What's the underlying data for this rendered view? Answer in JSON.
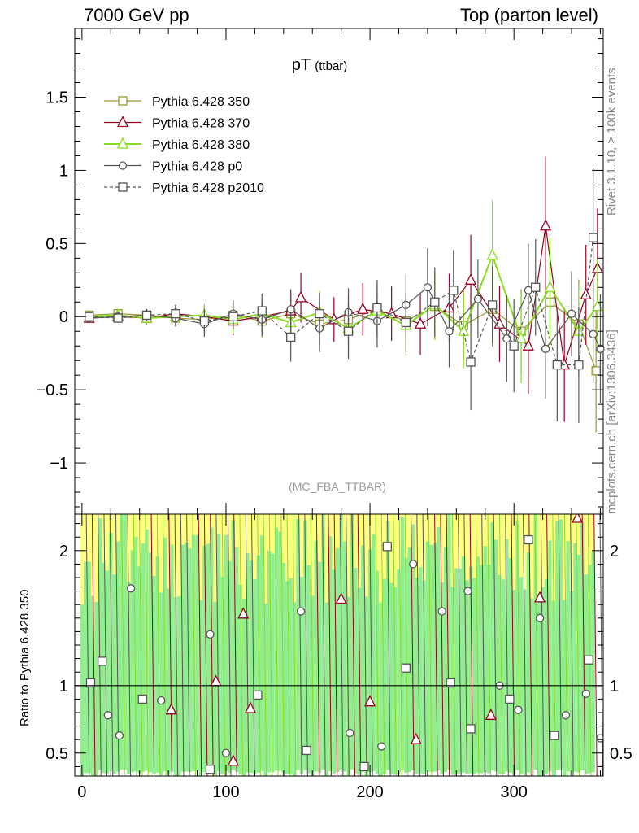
{
  "header": {
    "left": "7000 GeV pp",
    "right": "Top (parton level)"
  },
  "side_texts": {
    "rivet": "Rivet 3.1.10, ≥ 100k events",
    "mcplots": "mcplots.cern.ch [arXiv:1306.3436]"
  },
  "plot_title": {
    "main": "pT",
    "sub": "(ttbar)"
  },
  "analysis_id": "(MC_FBA_TTBAR)",
  "ratio_ylabel": "Ratio to Pythia 6.428 350",
  "colors": {
    "s350": "#999933",
    "s370": "#990022",
    "s380": "#88dd22",
    "p0": "#555555",
    "p2010": "#555555",
    "band_yellow": "#ffff80",
    "band_green": "#90ee90"
  },
  "chart_data": [
    {
      "type": "scatter",
      "panel": "main",
      "title": "pT (ttbar)",
      "xlim": [
        -5,
        362
      ],
      "ylim": [
        -1.35,
        1.97
      ],
      "yticks": [
        -1,
        -0.5,
        0,
        0.5,
        1,
        1.5
      ],
      "ytick_labels": [
        "−1",
        "−0.5",
        "0",
        "0.5",
        "1",
        "1.5"
      ],
      "legend_position": "top-left",
      "series": [
        {
          "name": "Pythia 6.428 350",
          "marker": "square-open",
          "line": "solid",
          "x": [
            5,
            25,
            45,
            65,
            85,
            105,
            125,
            145,
            165,
            185,
            205,
            225,
            245,
            265,
            285,
            305,
            325,
            345,
            357
          ],
          "y": [
            0.01,
            0.02,
            0.01,
            -0.01,
            -0.02,
            0.01,
            -0.03,
            0.02,
            -0.05,
            -0.02,
            0.05,
            -0.03,
            0.07,
            -0.06,
            0.05,
            -0.1,
            0.1,
            -0.05,
            -0.37
          ]
        },
        {
          "name": "Pythia 6.428 370",
          "marker": "triangle-open",
          "line": "solid",
          "x": [
            5,
            25,
            45,
            65,
            85,
            105,
            125,
            145,
            152,
            175,
            195,
            215,
            235,
            255,
            270,
            290,
            310,
            322,
            335,
            350,
            358
          ],
          "y": [
            -0.01,
            0.0,
            -0.01,
            0.02,
            0.0,
            -0.03,
            0.0,
            0.04,
            0.13,
            -0.02,
            0.05,
            0.02,
            -0.05,
            0.06,
            0.25,
            -0.05,
            -0.2,
            0.62,
            -0.33,
            0.15,
            0.33
          ]
        },
        {
          "name": "Pythia 6.428 380",
          "marker": "triangle-open",
          "line": "solid",
          "x": [
            5,
            25,
            45,
            65,
            85,
            105,
            125,
            145,
            165,
            185,
            205,
            225,
            245,
            265,
            285,
            305,
            325,
            345,
            358
          ],
          "y": [
            0.0,
            0.01,
            -0.01,
            0.0,
            0.01,
            -0.02,
            0.02,
            -0.04,
            0.03,
            -0.08,
            0.04,
            -0.06,
            0.08,
            -0.1,
            0.42,
            -0.15,
            0.2,
            -0.1,
            0.07
          ]
        },
        {
          "name": "Pythia 6.428 p0",
          "marker": "circle-open",
          "line": "solid",
          "x": [
            5,
            25,
            45,
            65,
            85,
            105,
            125,
            145,
            165,
            185,
            205,
            225,
            240,
            255,
            275,
            295,
            310,
            322,
            340,
            355,
            360
          ],
          "y": [
            -0.01,
            0.0,
            0.01,
            -0.01,
            -0.05,
            0.02,
            -0.02,
            0.05,
            -0.08,
            0.03,
            -0.03,
            0.08,
            0.2,
            -0.1,
            0.12,
            -0.15,
            0.18,
            -0.22,
            0.02,
            -0.12,
            -0.22
          ]
        },
        {
          "name": "Pythia 6.428 p2010",
          "marker": "square-open",
          "line": "dashed",
          "x": [
            5,
            25,
            45,
            65,
            85,
            105,
            125,
            145,
            165,
            185,
            205,
            225,
            245,
            258,
            270,
            285,
            300,
            315,
            330,
            345,
            355
          ],
          "y": [
            0.0,
            -0.01,
            0.01,
            0.02,
            -0.03,
            0.0,
            0.04,
            -0.14,
            0.02,
            -0.1,
            0.06,
            -0.04,
            0.1,
            0.18,
            -0.31,
            0.08,
            -0.2,
            0.2,
            -0.33,
            -0.33,
            0.54
          ]
        }
      ]
    },
    {
      "type": "scatter",
      "panel": "ratio",
      "xlim": [
        -5,
        362
      ],
      "ylim": [
        0.33,
        2.27
      ],
      "yticks": [
        0.5,
        1,
        2
      ],
      "ytick_labels": [
        "0.5",
        "1",
        "2"
      ],
      "xticks": [
        0,
        100,
        200,
        300
      ],
      "xtick_labels": [
        "0",
        "100",
        "200",
        "300"
      ],
      "reference_line": 1,
      "series": [
        {
          "name": "Pythia 6.428 p0",
          "marker": "circle-open",
          "x": [
            18,
            26,
            34,
            55,
            89,
            100,
            152,
            186,
            208,
            230,
            250,
            268,
            290,
            303,
            318,
            336,
            350,
            360
          ],
          "y": [
            0.78,
            0.63,
            1.72,
            0.89,
            1.38,
            0.5,
            1.55,
            0.65,
            0.55,
            1.9,
            1.55,
            1.7,
            1.0,
            0.82,
            1.5,
            0.78,
            0.94,
            0.61
          ]
        },
        {
          "name": "Pythia 6.428 p2010",
          "marker": "square-open",
          "x": [
            6,
            14,
            42,
            89,
            122,
            156,
            196,
            212,
            225,
            256,
            270,
            297,
            310,
            328,
            352
          ],
          "y": [
            1.02,
            1.18,
            0.9,
            0.38,
            0.93,
            0.52,
            0.4,
            2.03,
            1.13,
            1.02,
            0.68,
            0.9,
            2.08,
            0.63,
            1.19
          ]
        },
        {
          "name": "Pythia 6.428 370",
          "marker": "triangle-open",
          "x": [
            62,
            93,
            105,
            112,
            117,
            180,
            200,
            232,
            284,
            318,
            344
          ],
          "y": [
            0.82,
            1.03,
            0.44,
            1.53,
            0.83,
            1.64,
            0.88,
            0.6,
            0.78,
            1.65,
            2.24
          ]
        }
      ]
    }
  ]
}
